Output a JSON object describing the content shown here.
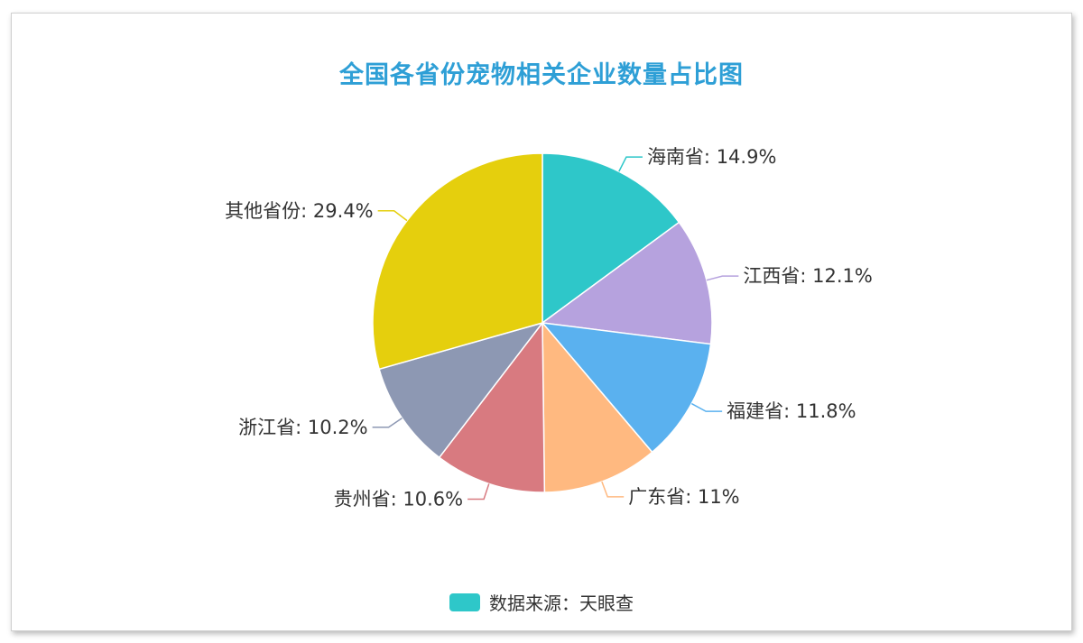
{
  "chart_data": {
    "type": "pie",
    "title": "全国各省份宠物相关企业数量占比图",
    "slices": [
      {
        "name": "海南省",
        "value": 14.9,
        "label": "海南省: 14.9%",
        "color": "#2ec7c9"
      },
      {
        "name": "江西省",
        "value": 12.1,
        "label": "江西省: 12.1%",
        "color": "#b6a2de"
      },
      {
        "name": "福建省",
        "value": 11.8,
        "label": "福建省: 11.8%",
        "color": "#5ab1ef"
      },
      {
        "name": "广东省",
        "value": 11,
        "label": "广东省: 11%",
        "color": "#ffb980"
      },
      {
        "name": "贵州省",
        "value": 10.6,
        "label": "贵州省: 10.6%",
        "color": "#d87a80"
      },
      {
        "name": "浙江省",
        "value": 10.2,
        "label": "浙江省: 10.2%",
        "color": "#8d98b3"
      },
      {
        "name": "其他省份",
        "value": 29.4,
        "label": "其他省份: 29.4%",
        "color": "#e5cf0d"
      }
    ],
    "legend": {
      "label": "数据来源：天眼查",
      "color": "#2ec7c9",
      "placement": "bottom"
    }
  }
}
